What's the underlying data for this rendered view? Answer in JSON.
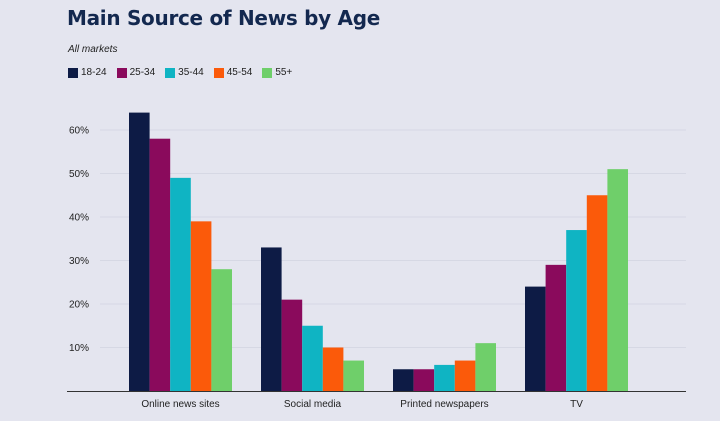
{
  "header": {
    "title": "Main Source of News by Age",
    "subtitle": "All markets"
  },
  "chart_data": {
    "type": "bar",
    "title": "Main Source of News by Age",
    "subtitle": "All markets",
    "categories": [
      "Online news sites",
      "Social media",
      "Printed newspapers",
      "TV"
    ],
    "series": [
      {
        "name": "18-24",
        "color": "#0d1b45",
        "values": [
          64,
          33,
          5,
          24
        ]
      },
      {
        "name": "25-34",
        "color": "#8a0a5c",
        "values": [
          58,
          21,
          5,
          29
        ]
      },
      {
        "name": "35-44",
        "color": "#0fb4c3",
        "values": [
          49,
          15,
          6,
          37
        ]
      },
      {
        "name": "45-54",
        "color": "#fb5a0a",
        "values": [
          39,
          10,
          7,
          45
        ]
      },
      {
        "name": "55+",
        "color": "#6fcf6a",
        "values": [
          28,
          7,
          11,
          51
        ]
      }
    ],
    "yticks": [
      "10%",
      "20%",
      "30%",
      "40%",
      "50%",
      "60%"
    ],
    "ytick_values": [
      10,
      20,
      30,
      40,
      50,
      60
    ],
    "ylim": [
      0,
      70
    ],
    "xlabel": "",
    "ylabel": "",
    "grid": true,
    "legend": "top-left"
  }
}
